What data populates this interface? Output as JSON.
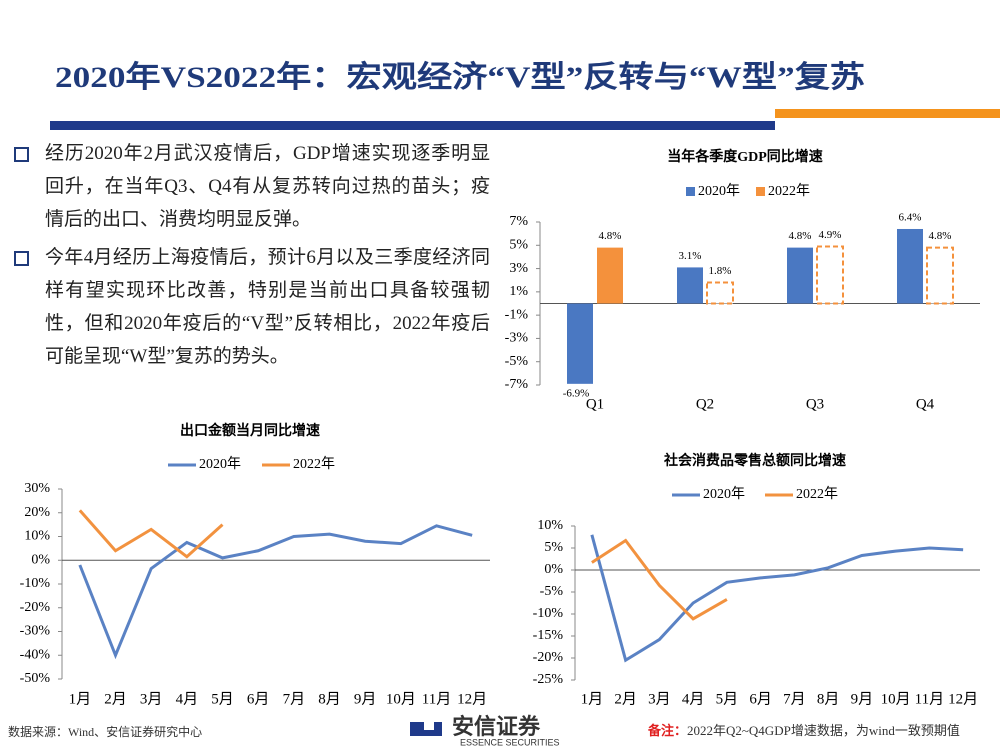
{
  "title": "2020年VS2022年：宏观经济“V型”反转与“W型”复苏",
  "bullets": [
    "经历2020年2月武汉疫情后，GDP增速实现逐季明显回升，在当年Q3、Q4有从复苏转向过热的苗头；疫情后的出口、消费均明显反弹。",
    "今年4月经历上海疫情后，预计6月以及三季度经济同样有望实现环比改善，特别是当前出口具备较强韧性，但和2020年疫后的“V型”反转相比，2022年疫后可能呈现“W型”复苏的势头。"
  ],
  "chart_data": [
    {
      "type": "bar",
      "title": "当年各季度GDP同比增速",
      "categories": [
        "Q1",
        "Q2",
        "Q3",
        "Q4"
      ],
      "series": [
        {
          "name": "2020年",
          "color": "#4a78c2",
          "values": [
            -6.9,
            3.1,
            4.8,
            6.4
          ],
          "value_labels": [
            "-6.9%",
            "3.1%",
            "4.8%",
            "6.4%"
          ],
          "forecast": [
            false,
            false,
            false,
            false
          ]
        },
        {
          "name": "2022年",
          "color": "#f4913c",
          "values": [
            4.8,
            1.8,
            4.9,
            4.8
          ],
          "value_labels": [
            "4.8%",
            "1.8%",
            "4.9%",
            "4.8%"
          ],
          "forecast": [
            false,
            true,
            true,
            true
          ]
        }
      ],
      "ylim": [
        -7,
        7
      ],
      "yticks": [
        {
          "value": 7,
          "label": "7%"
        },
        {
          "value": 5,
          "label": "5%"
        },
        {
          "value": 3,
          "label": "3%"
        },
        {
          "value": 1,
          "label": "1%"
        },
        {
          "value": -1,
          "label": "-1%"
        },
        {
          "value": -3,
          "label": "-3%"
        },
        {
          "value": -5,
          "label": "-5%"
        },
        {
          "value": -7,
          "label": "-7%"
        }
      ]
    },
    {
      "type": "line",
      "title": "出口金额当月同比增速",
      "categories": [
        "1月",
        "2月",
        "3月",
        "4月",
        "5月",
        "6月",
        "7月",
        "8月",
        "9月",
        "10月",
        "11月",
        "12月"
      ],
      "series": [
        {
          "name": "2020年",
          "color": "#5a82c4",
          "values": [
            -2,
            -40,
            -3.5,
            7.5,
            1,
            4,
            10,
            11,
            8,
            7,
            14.5,
            10.5
          ]
        },
        {
          "name": "2022年",
          "color": "#f2923f",
          "values": [
            21,
            4,
            13,
            1.5,
            15,
            null,
            null,
            null,
            null,
            null,
            null,
            null
          ]
        }
      ],
      "ylim": [
        -50,
        30
      ],
      "yticks": [
        {
          "value": 30,
          "label": "30%"
        },
        {
          "value": 20,
          "label": "20%"
        },
        {
          "value": 10,
          "label": "10%"
        },
        {
          "value": 0,
          "label": "0%"
        },
        {
          "value": -10,
          "label": "-10%"
        },
        {
          "value": -20,
          "label": "-20%"
        },
        {
          "value": -30,
          "label": "-30%"
        },
        {
          "value": -40,
          "label": "-40%"
        },
        {
          "value": -50,
          "label": "-50%"
        }
      ]
    },
    {
      "type": "line",
      "title": "社会消费品零售总额同比增速",
      "categories": [
        "1月",
        "2月",
        "3月",
        "4月",
        "5月",
        "6月",
        "7月",
        "8月",
        "9月",
        "10月",
        "11月",
        "12月"
      ],
      "series": [
        {
          "name": "2020年",
          "color": "#5a82c4",
          "values": [
            8,
            -20.5,
            -15.8,
            -7.5,
            -2.8,
            -1.8,
            -1.1,
            0.5,
            3.3,
            4.3,
            5,
            4.6
          ]
        },
        {
          "name": "2022年",
          "color": "#f2923f",
          "values": [
            1.7,
            6.7,
            -3.5,
            -11.1,
            -6.7,
            null,
            null,
            null,
            null,
            null,
            null,
            null
          ]
        }
      ],
      "ylim": [
        -25,
        10
      ],
      "yticks": [
        {
          "value": 10,
          "label": "10%"
        },
        {
          "value": 5,
          "label": "5%"
        },
        {
          "value": 0,
          "label": "0%"
        },
        {
          "value": -5,
          "label": "-5%"
        },
        {
          "value": -10,
          "label": "-10%"
        },
        {
          "value": -15,
          "label": "-15%"
        },
        {
          "value": -20,
          "label": "-20%"
        },
        {
          "value": -25,
          "label": "-25%"
        }
      ]
    }
  ],
  "footer": {
    "source": "数据来源：Wind、安信证券研究中心",
    "logo": "安信证券",
    "logo_en": "ESSENCE SECURITIES",
    "note_label": "备注：",
    "note": "2022年Q2~Q4GDP增速数据，为wind一致预期值"
  }
}
